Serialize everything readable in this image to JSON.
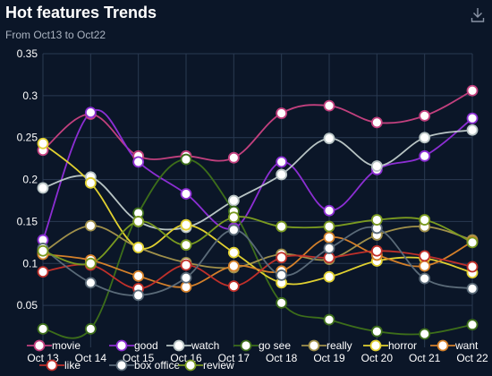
{
  "header": {
    "title": "Hot features Trends",
    "subtitle": "From Oct13 to Oct22",
    "download_icon": "download-icon"
  },
  "chart_data": {
    "type": "line",
    "title": "Hot features Trends",
    "subtitle": "From Oct13 to Oct22",
    "categories": [
      "Oct 13",
      "Oct 14",
      "Oct 15",
      "Oct 16",
      "Oct 17",
      "Oct 18",
      "Oct 19",
      "Oct 20",
      "Oct 21",
      "Oct 22"
    ],
    "ylim": [
      0,
      0.35
    ],
    "yticks": [
      "0.05",
      "0.1",
      "0.15",
      "0.2",
      "0.25",
      "0.3",
      "0.35"
    ],
    "grid": true,
    "legend_position": "bottom",
    "series": [
      {
        "name": "movie",
        "color": "#c2407e",
        "values": [
          0.235,
          0.278,
          0.228,
          0.228,
          0.226,
          0.279,
          0.288,
          0.268,
          0.276,
          0.306
        ]
      },
      {
        "name": "good",
        "color": "#8c2ed3",
        "values": [
          0.128,
          0.28,
          0.221,
          0.183,
          0.142,
          0.221,
          0.163,
          0.212,
          0.228,
          0.273
        ]
      },
      {
        "name": "watch",
        "color": "#b8c4c4",
        "values": [
          0.19,
          0.203,
          0.15,
          0.143,
          0.175,
          0.206,
          0.249,
          0.216,
          0.25,
          0.259
        ]
      },
      {
        "name": "go see",
        "color": "#3d6e1a",
        "values": [
          0.022,
          0.022,
          0.16,
          0.224,
          0.162,
          0.053,
          0.033,
          0.019,
          0.016,
          0.027
        ]
      },
      {
        "name": "really",
        "color": "#a0904a",
        "values": [
          0.113,
          0.145,
          0.119,
          0.101,
          0.095,
          0.111,
          0.105,
          0.134,
          0.144,
          0.128
        ]
      },
      {
        "name": "horror",
        "color": "#e0d030",
        "values": [
          0.243,
          0.196,
          0.119,
          0.146,
          0.113,
          0.077,
          0.084,
          0.103,
          0.106,
          0.089
        ]
      },
      {
        "name": "want",
        "color": "#d4802a",
        "values": [
          0.111,
          0.104,
          0.085,
          0.072,
          0.097,
          0.091,
          0.131,
          0.11,
          0.097,
          0.126
        ]
      },
      {
        "name": "like",
        "color": "#c0302a",
        "values": [
          0.09,
          0.098,
          0.07,
          0.098,
          0.073,
          0.107,
          0.107,
          0.115,
          0.109,
          0.096
        ]
      },
      {
        "name": "box office",
        "color": "#5a6a78",
        "values": [
          0.118,
          0.077,
          0.062,
          0.083,
          0.14,
          0.086,
          0.118,
          0.142,
          0.082,
          0.07
        ]
      },
      {
        "name": "review",
        "color": "#7a9a20",
        "values": [
          0.115,
          0.1,
          0.15,
          0.122,
          0.155,
          0.144,
          0.144,
          0.152,
          0.152,
          0.125
        ]
      }
    ]
  }
}
